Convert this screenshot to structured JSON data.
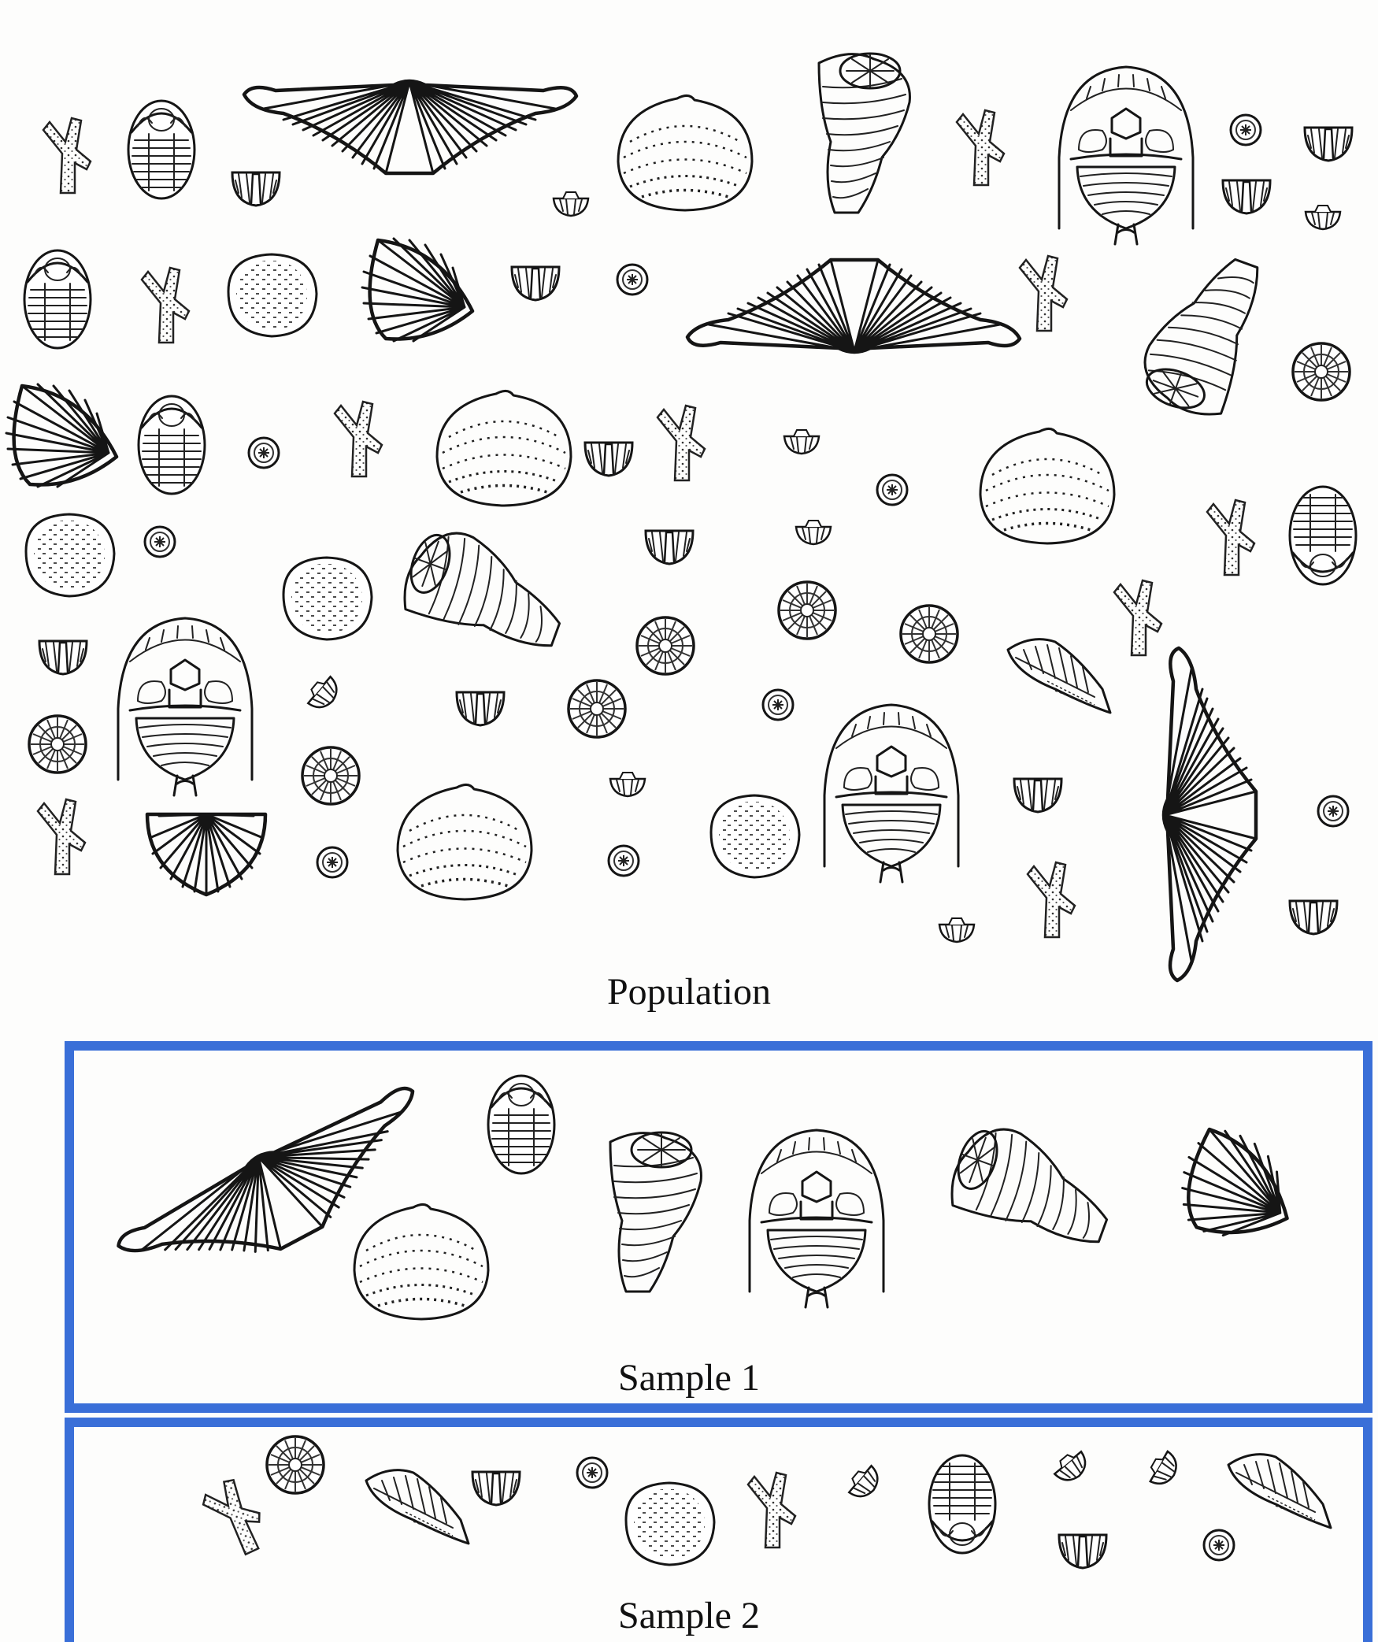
{
  "labels": {
    "population": "Population",
    "sample1": "Sample 1",
    "sample2": "Sample 2"
  },
  "colors": {
    "sample_border": "#3a6fd8",
    "ink": "#151515",
    "background": "#fdfdfc"
  },
  "fossil_types": [
    "coral",
    "trilobite",
    "spiriferid-brachiopod",
    "brachiopod-shell",
    "crinoid-ossicle",
    "bryozoan",
    "gastropod",
    "horn-coral",
    "horned-trilobite",
    "small-shell",
    "scallop-fan"
  ]
}
